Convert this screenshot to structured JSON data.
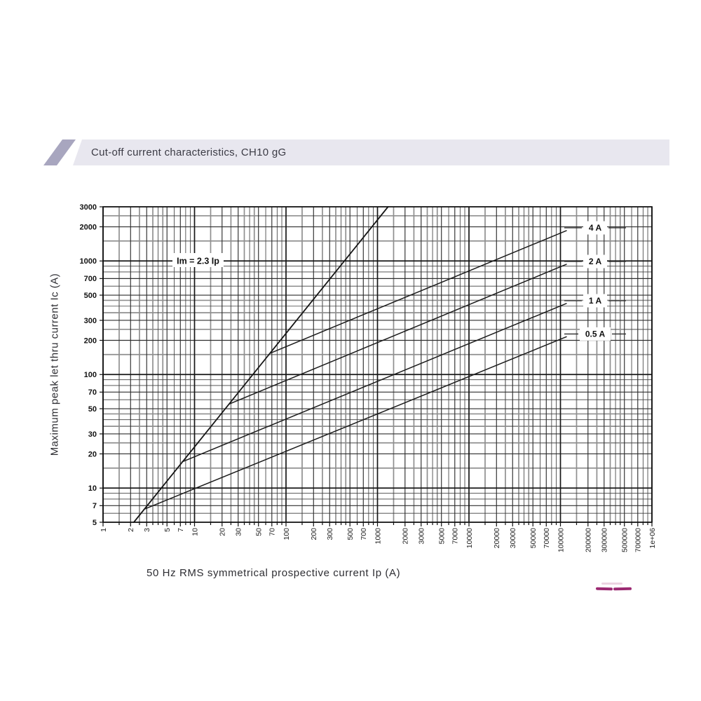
{
  "header": {
    "title": "Cut-off current characteristics, CH10 gG"
  },
  "chart_data": {
    "type": "line",
    "title": "Cut-off current characteristics, CH10 gG",
    "x_axis": {
      "label": "50 Hz RMS symmetrical prospective current Ip (A)",
      "scale": "log",
      "min": 1,
      "max": 1000000,
      "tick_values": [
        1,
        2,
        3,
        5,
        7,
        10,
        20,
        30,
        50,
        70,
        100,
        200,
        300,
        500,
        700,
        1000,
        2000,
        3000,
        5000,
        7000,
        10000,
        20000,
        30000,
        50000,
        70000,
        100000,
        200000,
        300000,
        500000,
        700000,
        1000000
      ],
      "tick_labels": [
        "1",
        "2",
        "3",
        "5",
        "7",
        "10",
        "20",
        "30",
        "50",
        "70",
        "100",
        "200",
        "300",
        "500",
        "700",
        "1000",
        "2000",
        "3000",
        "5000",
        "7000",
        "10000",
        "20000",
        "30000",
        "50000",
        "70000",
        "100000",
        "200000",
        "300000",
        "500000",
        "700000",
        "1e+06"
      ]
    },
    "y_axis": {
      "label": "Maximum peak let thru current Ic (A)",
      "scale": "log",
      "min": 5,
      "max": 3000,
      "tick_values": [
        5,
        7,
        10,
        20,
        30,
        50,
        70,
        100,
        200,
        300,
        500,
        700,
        1000,
        2000,
        3000
      ],
      "tick_labels": [
        "5",
        "7",
        "10",
        "20",
        "30",
        "50",
        "70",
        "100",
        "200",
        "300",
        "500",
        "700",
        "1000",
        "2000",
        "3000"
      ]
    },
    "grid": {
      "multipliers": [
        1,
        1.5,
        2,
        2.5,
        3,
        3.5,
        4,
        4.5,
        5,
        6,
        7,
        8,
        9
      ],
      "labeled_multipliers": [
        1,
        2,
        3,
        5,
        7
      ],
      "grid_on": true
    },
    "reference_line": {
      "label": "Im = 2.3 Ip",
      "equation_factor": 2.3,
      "points": [
        [
          2.17,
          5
        ],
        [
          1304,
          3000
        ]
      ]
    },
    "series": [
      {
        "name": "4 A",
        "points": [
          [
            67,
            154
          ],
          [
            116000,
            1850
          ]
        ]
      },
      {
        "name": "2 A",
        "points": [
          [
            24,
            55
          ],
          [
            116000,
            935
          ]
        ]
      },
      {
        "name": "1 A",
        "points": [
          [
            7.3,
            17
          ],
          [
            116000,
            422
          ]
        ]
      },
      {
        "name": "0.5 A",
        "points": [
          [
            2.8,
            6.5
          ],
          [
            116000,
            215
          ]
        ]
      }
    ],
    "legend_position": "right-inside"
  },
  "logo_fragment": {
    "color": "#9c2a72"
  }
}
